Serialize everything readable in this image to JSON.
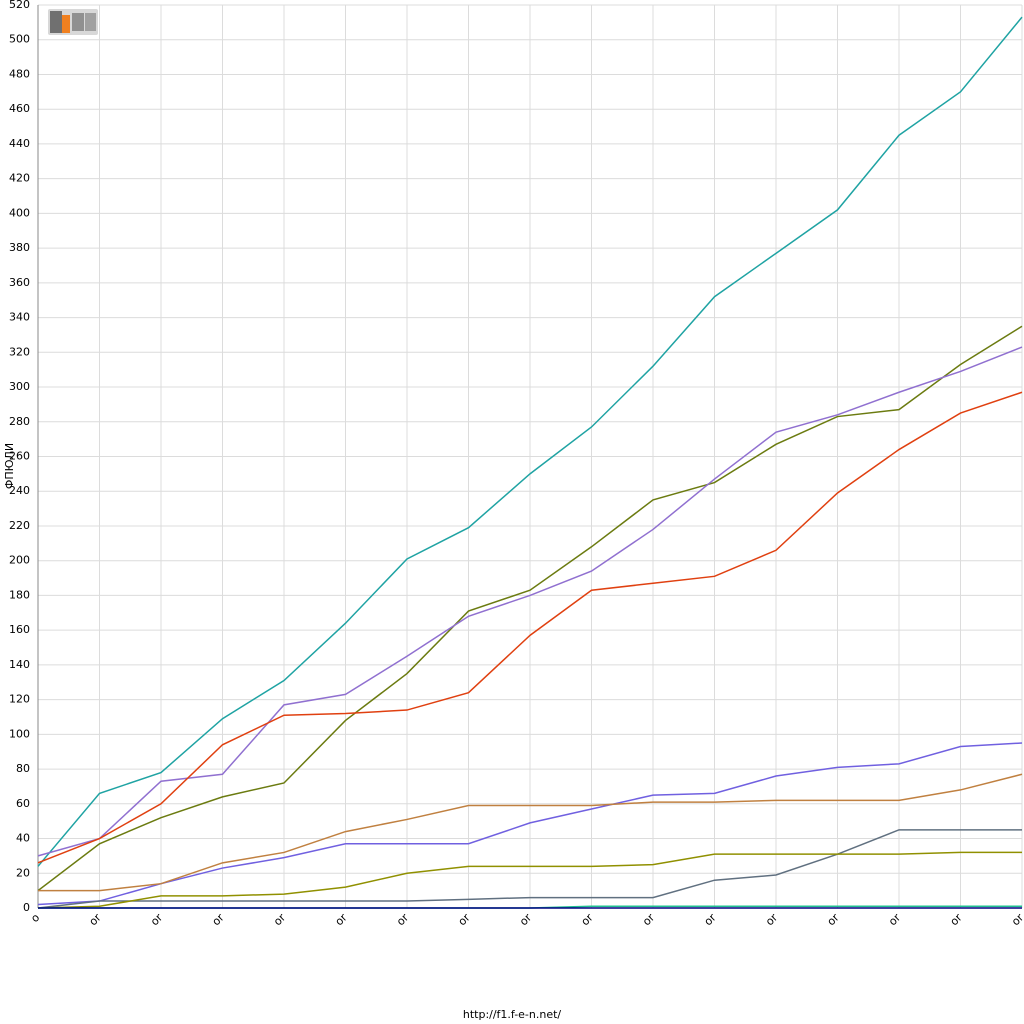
{
  "chart_data": {
    "type": "line",
    "y_label": "ФПЮЛИ",
    "footer": "http://f1.f-e-n.net/",
    "categories": [
      "o",
      "or",
      "or",
      "or",
      "or",
      "or",
      "or",
      "or",
      "or",
      "or",
      "or",
      "or",
      "or",
      "or",
      "or",
      "or",
      "or"
    ],
    "ylim": [
      0,
      520
    ],
    "yticks": [
      0,
      20,
      40,
      60,
      80,
      100,
      120,
      140,
      160,
      180,
      200,
      220,
      240,
      260,
      280,
      300,
      320,
      340,
      360,
      380,
      400,
      420,
      440,
      460,
      480,
      500,
      520
    ],
    "grid": true,
    "series": [
      {
        "color": "#1fa3a3",
        "values": [
          24,
          66,
          78,
          109,
          131,
          164,
          201,
          219,
          250,
          277,
          312,
          352,
          377,
          402,
          445,
          470,
          513
        ]
      },
      {
        "color": "#6b7b10",
        "values": [
          10,
          37,
          52,
          64,
          72,
          108,
          135,
          171,
          183,
          208,
          235,
          245,
          267,
          283,
          287,
          313,
          335
        ]
      },
      {
        "color": "#9070d0",
        "values": [
          30,
          40,
          73,
          77,
          117,
          123,
          145,
          168,
          180,
          194,
          218,
          247,
          274,
          284,
          297,
          309,
          323
        ]
      },
      {
        "color": "#e04010",
        "values": [
          26,
          40,
          60,
          94,
          111,
          112,
          114,
          124,
          157,
          183,
          187,
          191,
          206,
          239,
          264,
          285,
          297
        ]
      },
      {
        "color": "#7060e0",
        "values": [
          2,
          4,
          14,
          23,
          29,
          37,
          37,
          37,
          49,
          57,
          65,
          66,
          76,
          81,
          83,
          93,
          95
        ]
      },
      {
        "color": "#c08040",
        "values": [
          10,
          10,
          14,
          26,
          32,
          44,
          51,
          59,
          59,
          59,
          61,
          61,
          62,
          62,
          62,
          68,
          77
        ]
      },
      {
        "color": "#607080",
        "values": [
          0,
          4,
          4,
          4,
          4,
          4,
          4,
          5,
          6,
          6,
          6,
          16,
          19,
          31,
          45,
          45,
          45
        ]
      },
      {
        "color": "#909000",
        "values": [
          0,
          1,
          7,
          7,
          8,
          12,
          20,
          24,
          24,
          24,
          25,
          31,
          31,
          31,
          31,
          32,
          32
        ]
      },
      {
        "color": "#20c090",
        "values": [
          0,
          0,
          0,
          0,
          0,
          0,
          0,
          0,
          0,
          1,
          1,
          1,
          1,
          1,
          1,
          1,
          1
        ]
      },
      {
        "color": "#000080",
        "values": [
          0,
          0,
          0,
          0,
          0,
          0,
          0,
          0,
          0,
          0,
          0,
          0,
          0,
          0,
          0,
          0,
          0
        ]
      }
    ]
  }
}
